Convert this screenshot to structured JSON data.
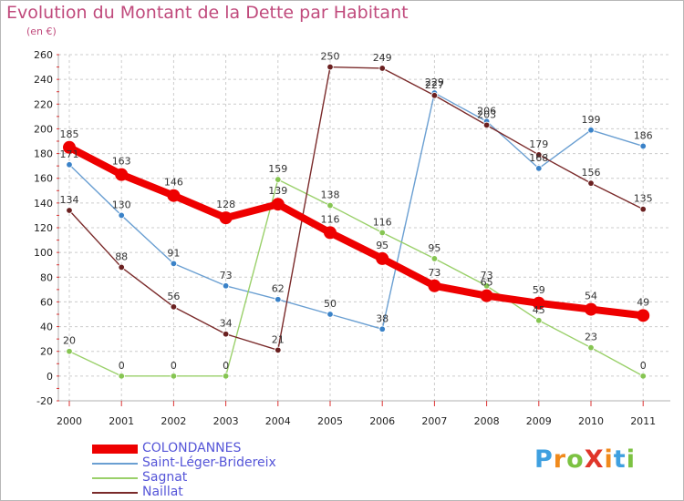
{
  "header": {
    "title": "Evolution du Montant de la Dette par Habitant",
    "unit": "(en €)"
  },
  "colors": {
    "title": "#c04a7c",
    "legend_text": "#5555d8",
    "background": "#ffffff",
    "grid": "#cccccc"
  },
  "logo": {
    "text": "ProXiti",
    "letters": [
      "P",
      "r",
      "o",
      "X",
      "i",
      "t",
      "i"
    ],
    "letter_colors": [
      "#3fa0e0",
      "#f08a1c",
      "#7cc242",
      "#e0362a",
      "#f08a1c",
      "#3fa0e0",
      "#7cc242"
    ]
  },
  "chart_data": {
    "type": "line",
    "title": "Evolution du Montant de la Dette par Habitant",
    "ylabel": "(en €)",
    "x": [
      "2000",
      "2001",
      "2002",
      "2003",
      "2004",
      "2005",
      "2006",
      "2007",
      "2008",
      "2009",
      "2010",
      "2011"
    ],
    "ylim": [
      -20,
      260
    ],
    "yticks": [
      -20,
      0,
      20,
      40,
      60,
      80,
      100,
      120,
      140,
      160,
      180,
      200,
      220,
      240,
      260
    ],
    "grid": true,
    "legend_position": "bottom-left",
    "series": [
      {
        "name": "COLONDANNES",
        "color": "#ee0000",
        "point_color": "#ee0000",
        "emphasis": "thick",
        "values": [
          185,
          163,
          146,
          128,
          139,
          116,
          95,
          73,
          65,
          59,
          54,
          49
        ]
      },
      {
        "name": "Saint-Léger-Bridereix",
        "color": "#6a9fd2",
        "point_color": "#3a82c8",
        "emphasis": "normal",
        "values": [
          171,
          130,
          91,
          73,
          62,
          50,
          38,
          229,
          206,
          168,
          199,
          186
        ]
      },
      {
        "name": "Sagnat",
        "color": "#9ad06a",
        "point_color": "#86c552",
        "emphasis": "normal",
        "values": [
          20,
          0,
          0,
          0,
          159,
          138,
          116,
          95,
          73,
          45,
          23,
          0
        ]
      },
      {
        "name": "Naillat",
        "color": "#7a2a2a",
        "point_color": "#6a2020",
        "emphasis": "normal",
        "values": [
          134,
          88,
          56,
          34,
          21,
          250,
          249,
          227,
          203,
          179,
          156,
          135
        ]
      }
    ]
  }
}
